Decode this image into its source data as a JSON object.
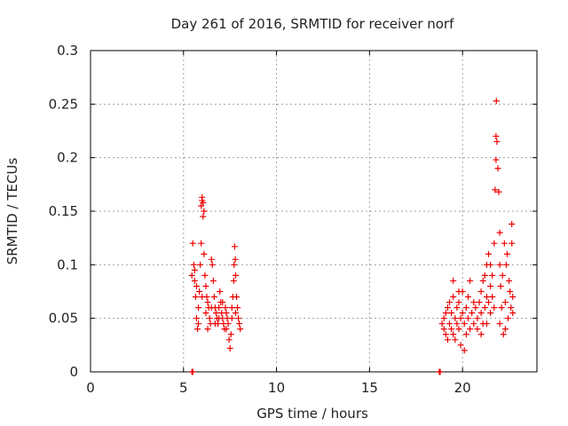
{
  "chart_data": {
    "type": "scatter",
    "title": "Day 261 of 2016, SRMTID for receiver norf",
    "xlabel": "GPS time / hours",
    "ylabel": "SRMTID / TECUs",
    "xlim": [
      0,
      24
    ],
    "ylim": [
      0,
      0.3
    ],
    "xticks": [
      0,
      5,
      10,
      15,
      20
    ],
    "xtick_labels": [
      "0",
      "5",
      "10",
      "15",
      "20"
    ],
    "yticks": [
      0,
      0.05,
      0.1,
      0.15,
      0.2,
      0.25,
      0.3
    ],
    "ytick_labels": [
      "0",
      "0.05",
      "0.1",
      "0.15",
      "0.2",
      "0.25",
      "0.3"
    ],
    "grid": true,
    "marker": "plus",
    "color": "#ee0000",
    "series": [
      {
        "name": "SRMTID",
        "points": [
          [
            5.45,
            0.0
          ],
          [
            5.5,
            0.0
          ],
          [
            18.75,
            0.0
          ],
          [
            18.8,
            0.0
          ],
          [
            5.45,
            0.09
          ],
          [
            5.5,
            0.12
          ],
          [
            5.55,
            0.1
          ],
          [
            5.6,
            0.085
          ],
          [
            5.65,
            0.07
          ],
          [
            5.7,
            0.05
          ],
          [
            5.75,
            0.04
          ],
          [
            5.8,
            0.06
          ],
          [
            5.85,
            0.075
          ],
          [
            5.9,
            0.1
          ],
          [
            5.95,
            0.12
          ],
          [
            5.95,
            0.155
          ],
          [
            6.0,
            0.16
          ],
          [
            6.0,
            0.163
          ],
          [
            6.05,
            0.158
          ],
          [
            6.05,
            0.145
          ],
          [
            6.1,
            0.15
          ],
          [
            6.1,
            0.11
          ],
          [
            6.15,
            0.09
          ],
          [
            6.2,
            0.08
          ],
          [
            6.25,
            0.07
          ],
          [
            6.3,
            0.065
          ],
          [
            6.35,
            0.06
          ],
          [
            6.4,
            0.05
          ],
          [
            6.45,
            0.045
          ],
          [
            6.5,
            0.105
          ],
          [
            6.55,
            0.1
          ],
          [
            6.6,
            0.085
          ],
          [
            6.65,
            0.07
          ],
          [
            6.7,
            0.06
          ],
          [
            6.75,
            0.055
          ],
          [
            6.8,
            0.05
          ],
          [
            6.85,
            0.045
          ],
          [
            6.9,
            0.06
          ],
          [
            6.95,
            0.075
          ],
          [
            7.0,
            0.065
          ],
          [
            7.05,
            0.055
          ],
          [
            7.1,
            0.05
          ],
          [
            7.15,
            0.045
          ],
          [
            7.2,
            0.04
          ],
          [
            7.25,
            0.06
          ],
          [
            7.3,
            0.055
          ],
          [
            7.35,
            0.05
          ],
          [
            7.4,
            0.045
          ],
          [
            7.45,
            0.03
          ],
          [
            7.5,
            0.022
          ],
          [
            7.55,
            0.035
          ],
          [
            7.6,
            0.05
          ],
          [
            7.65,
            0.07
          ],
          [
            7.7,
            0.085
          ],
          [
            7.72,
            0.1
          ],
          [
            7.75,
            0.117
          ],
          [
            7.78,
            0.105
          ],
          [
            7.8,
            0.09
          ],
          [
            7.85,
            0.07
          ],
          [
            7.9,
            0.06
          ],
          [
            7.95,
            0.05
          ],
          [
            8.0,
            0.045
          ],
          [
            8.05,
            0.04
          ],
          [
            6.2,
            0.055
          ],
          [
            6.3,
            0.04
          ],
          [
            6.5,
            0.06
          ],
          [
            6.7,
            0.045
          ],
          [
            6.9,
            0.05
          ],
          [
            7.1,
            0.065
          ],
          [
            7.3,
            0.04
          ],
          [
            7.6,
            0.06
          ],
          [
            7.8,
            0.055
          ],
          [
            5.6,
            0.095
          ],
          [
            5.7,
            0.08
          ],
          [
            5.8,
            0.045
          ],
          [
            6.0,
            0.07
          ],
          [
            18.9,
            0.045
          ],
          [
            19.0,
            0.04
          ],
          [
            19.0,
            0.05
          ],
          [
            19.1,
            0.035
          ],
          [
            19.1,
            0.055
          ],
          [
            19.2,
            0.03
          ],
          [
            19.2,
            0.06
          ],
          [
            19.3,
            0.045
          ],
          [
            19.3,
            0.065
          ],
          [
            19.4,
            0.04
          ],
          [
            19.4,
            0.055
          ],
          [
            19.5,
            0.035
          ],
          [
            19.5,
            0.07
          ],
          [
            19.6,
            0.05
          ],
          [
            19.6,
            0.03
          ],
          [
            19.7,
            0.06
          ],
          [
            19.7,
            0.045
          ],
          [
            19.8,
            0.04
          ],
          [
            19.8,
            0.065
          ],
          [
            19.9,
            0.05
          ],
          [
            19.9,
            0.025
          ],
          [
            20.0,
            0.055
          ],
          [
            20.0,
            0.075
          ],
          [
            20.1,
            0.045
          ],
          [
            20.1,
            0.02
          ],
          [
            20.2,
            0.06
          ],
          [
            20.2,
            0.035
          ],
          [
            20.3,
            0.05
          ],
          [
            20.3,
            0.07
          ],
          [
            20.4,
            0.04
          ],
          [
            20.5,
            0.055
          ],
          [
            20.6,
            0.045
          ],
          [
            20.7,
            0.06
          ],
          [
            20.8,
            0.05
          ],
          [
            20.9,
            0.065
          ],
          [
            21.0,
            0.055
          ],
          [
            21.0,
            0.075
          ],
          [
            21.1,
            0.045
          ],
          [
            21.1,
            0.085
          ],
          [
            21.2,
            0.06
          ],
          [
            21.2,
            0.09
          ],
          [
            21.3,
            0.07
          ],
          [
            21.3,
            0.1
          ],
          [
            21.4,
            0.065
          ],
          [
            21.4,
            0.11
          ],
          [
            21.5,
            0.08
          ],
          [
            21.5,
            0.055
          ],
          [
            21.6,
            0.07
          ],
          [
            21.6,
            0.09
          ],
          [
            21.7,
            0.06
          ],
          [
            21.7,
            0.12
          ],
          [
            21.75,
            0.17
          ],
          [
            21.8,
            0.198
          ],
          [
            21.8,
            0.22
          ],
          [
            21.82,
            0.253
          ],
          [
            21.85,
            0.215
          ],
          [
            21.9,
            0.19
          ],
          [
            21.95,
            0.168
          ],
          [
            22.0,
            0.13
          ],
          [
            22.0,
            0.1
          ],
          [
            22.05,
            0.08
          ],
          [
            22.1,
            0.06
          ],
          [
            22.15,
            0.09
          ],
          [
            22.2,
            0.035
          ],
          [
            22.25,
            0.12
          ],
          [
            22.3,
            0.065
          ],
          [
            22.35,
            0.1
          ],
          [
            22.4,
            0.11
          ],
          [
            22.45,
            0.05
          ],
          [
            22.5,
            0.085
          ],
          [
            22.55,
            0.075
          ],
          [
            22.6,
            0.06
          ],
          [
            22.65,
            0.138
          ],
          [
            22.65,
            0.12
          ],
          [
            22.7,
            0.07
          ],
          [
            22.7,
            0.055
          ],
          [
            19.5,
            0.085
          ],
          [
            19.8,
            0.075
          ],
          [
            20.4,
            0.085
          ],
          [
            20.6,
            0.065
          ],
          [
            20.8,
            0.04
          ],
          [
            21.0,
            0.035
          ],
          [
            21.3,
            0.045
          ],
          [
            21.5,
            0.1
          ],
          [
            22.0,
            0.045
          ],
          [
            22.3,
            0.04
          ]
        ]
      }
    ]
  }
}
